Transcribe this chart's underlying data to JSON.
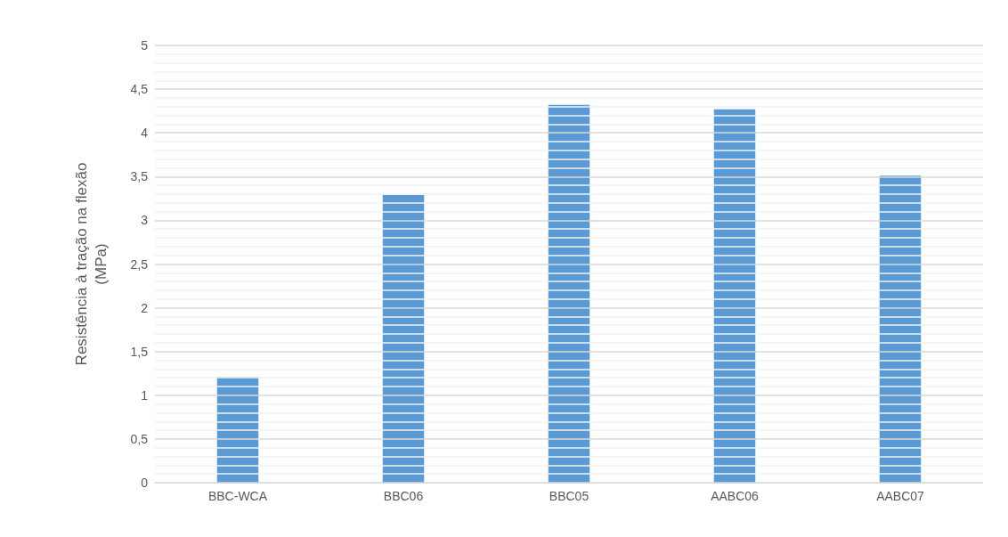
{
  "chart_data": {
    "type": "bar",
    "ylabel": "Resistência à tração na flexão\n(MPa)",
    "categories": [
      "BBC-WCA",
      "BBC06",
      "BBC05",
      "AABC06",
      "AABC07"
    ],
    "values": [
      1.21,
      3.29,
      4.32,
      4.27,
      3.51
    ],
    "color": "#5b9bd5",
    "ylim": [
      0,
      5
    ],
    "yticks": [
      0,
      {
        "value": 0.1,
        "label": null
      },
      {
        "value": 0.2,
        "label": null
      },
      {
        "value": 0.3,
        "label": null
      },
      {
        "value": 0.4,
        "label": null
      },
      {
        "value": 0.5,
        "label": "0,5"
      },
      {
        "value": 0.6,
        "label": null
      },
      {
        "value": 0.7,
        "label": null
      },
      {
        "value": 0.8,
        "label": null
      },
      {
        "value": 0.9,
        "label": null
      },
      1,
      {
        "value": 1.1,
        "label": null
      },
      {
        "value": 1.2,
        "label": null
      },
      {
        "value": 1.3,
        "label": null
      },
      {
        "value": 1.4,
        "label": null
      },
      {
        "value": 1.5,
        "label": "1,5"
      },
      {
        "value": 1.6,
        "label": null
      },
      {
        "value": 1.7,
        "label": null
      },
      {
        "value": 1.8,
        "label": null
      },
      {
        "value": 1.9,
        "label": null
      },
      2,
      {
        "value": 2.1,
        "label": null
      },
      {
        "value": 2.2,
        "label": null
      },
      {
        "value": 2.3,
        "label": null
      },
      {
        "value": 2.4,
        "label": null
      },
      {
        "value": 2.5,
        "label": "2,5"
      },
      {
        "value": 2.6,
        "label": null
      },
      {
        "value": 2.7,
        "label": null
      },
      {
        "value": 2.8,
        "label": null
      },
      {
        "value": 2.9,
        "label": null
      },
      3,
      {
        "value": 3.1,
        "label": null
      },
      {
        "value": 3.2,
        "label": null
      },
      {
        "value": 3.3,
        "label": null
      },
      {
        "value": 3.4,
        "label": null
      },
      {
        "value": 3.5,
        "label": "3,5"
      },
      {
        "value": 3.6,
        "label": null
      },
      {
        "value": 3.7,
        "label": null
      },
      {
        "value": 3.8,
        "label": null
      },
      {
        "value": 3.9,
        "label": null
      },
      4,
      {
        "value": 4.1,
        "label": null
      },
      {
        "value": 4.2,
        "label": null
      },
      {
        "value": 4.3,
        "label": null
      },
      {
        "value": 4.4,
        "label": null
      },
      {
        "value": 4.5,
        "label": "4,5"
      },
      {
        "value": 4.6,
        "label": null
      },
      {
        "value": 4.7,
        "label": null
      },
      {
        "value": 4.8,
        "label": null
      },
      {
        "value": 4.9,
        "label": null
      },
      5
    ],
    "grid": "y"
  }
}
